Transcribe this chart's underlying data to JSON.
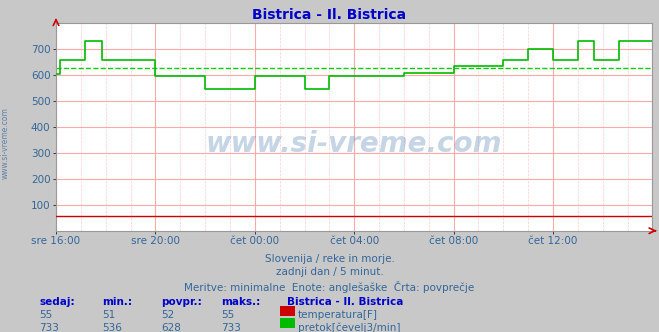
{
  "title": "Bistrica - Il. Bistrica",
  "title_color": "#0000cc",
  "bg_color": "#c8c8c8",
  "plot_bg_color": "#ffffff",
  "grid_color": "#ffaaaa",
  "xlabel_color": "#336699",
  "ylabel_color": "#336699",
  "watermark": "www.si-vreme.com",
  "watermark_color": "#336699",
  "caption1": "Slovenija / reke in morje.",
  "caption2": "zadnji dan / 5 minut.",
  "caption3": "Meritve: minimalne  Enote: anglešaške  Črta: povprečje",
  "caption_color": "#336699",
  "ylim": [
    0,
    800
  ],
  "yticks": [
    100,
    200,
    300,
    400,
    500,
    600,
    700
  ],
  "xlim": [
    0,
    288
  ],
  "xtick_positions": [
    0,
    48,
    96,
    144,
    192,
    240
  ],
  "xtick_labels": [
    "sre 16:00",
    "sre 20:00",
    "čet 00:00",
    "čet 04:00",
    "čet 08:00",
    "čet 12:00"
  ],
  "temp_color": "#cc0000",
  "flow_color": "#00bb00",
  "avg_flow_color": "#00cc00",
  "avg_flow_value": 628,
  "table_headers": [
    "sedaj:",
    "min.:",
    "povpr.:",
    "maks.:"
  ],
  "station_name": "Bistrica - Il. Bistrica",
  "temp_row": [
    55,
    51,
    52,
    55
  ],
  "flow_row": [
    733,
    536,
    628,
    733
  ],
  "temp_label": "temperatura[F]",
  "flow_label": "pretok[čevelj3/min]",
  "flow_x": [
    0,
    2,
    2,
    14,
    14,
    22,
    22,
    48,
    48,
    72,
    72,
    96,
    96,
    120,
    120,
    132,
    132,
    168,
    168,
    192,
    192,
    216,
    216,
    228,
    228,
    240,
    240,
    252,
    252,
    260,
    260,
    272,
    272,
    288
  ],
  "flow_y": [
    605,
    605,
    660,
    660,
    730,
    730,
    660,
    660,
    595,
    595,
    545,
    545,
    595,
    595,
    548,
    548,
    595,
    595,
    608,
    608,
    636,
    636,
    660,
    660,
    700,
    700,
    660,
    660,
    730,
    730,
    660,
    660,
    730,
    730
  ],
  "temp_value": 55
}
